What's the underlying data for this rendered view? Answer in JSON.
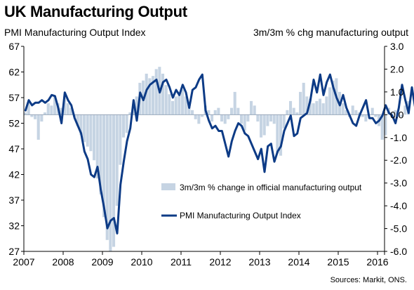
{
  "title": "UK Manufacturing Output",
  "left_axis_label": "PMI Manufacturing Output Index",
  "right_axis_label": "3m/3m % chg manufacturing output",
  "source": "Sources: Markit, ONS.",
  "chart_data": {
    "type": "bar+line",
    "title": "UK Manufacturing Output",
    "x_ticks": [
      "2007",
      "2008",
      "2009",
      "2010",
      "2011",
      "2012",
      "2013",
      "2014",
      "2015",
      "2016"
    ],
    "left_axis": {
      "label": "PMI Manufacturing Output Index",
      "min": 27,
      "max": 67,
      "ticks": [
        "67",
        "62",
        "57",
        "52",
        "47",
        "42",
        "37",
        "32",
        "27"
      ]
    },
    "right_axis": {
      "label": "3m/3m % chg manufacturing output",
      "min": -6.0,
      "max": 3.0,
      "ticks": [
        "3.0",
        "2.0",
        "1.0",
        "0.0",
        "-1.0",
        "-2.0",
        "-3.0",
        "-4.0",
        "-5.0",
        "-6.0"
      ]
    },
    "legend": [
      {
        "label": "3m/3m % change in official manufacturing output",
        "type": "bar",
        "color": "#c6d4e3"
      },
      {
        "label": "PMI Manufacturing Output Index",
        "type": "line",
        "color": "#0d3b86"
      }
    ],
    "legend_position": "bottom-center",
    "grid": false,
    "start_year": 2007,
    "months_per_year": 12,
    "series": [
      {
        "name": "3m/3m % change in official manufacturing output",
        "axis": "right",
        "type": "bar",
        "values": [
          0.1,
          0.5,
          -0.1,
          -0.2,
          -1.1,
          -0.3,
          0.1,
          0.5,
          0.4,
          0.8,
          0.5,
          0.3,
          0.8,
          0.5,
          0.3,
          -0.1,
          -0.5,
          -0.9,
          -1.2,
          -1.4,
          -1.6,
          -2.0,
          -2.8,
          -3.5,
          -4.5,
          -5.5,
          -6.0,
          -5.8,
          -4.0,
          -2.2,
          -1.0,
          -0.8,
          0.1,
          0.4,
          0.8,
          1.4,
          1.5,
          1.8,
          1.6,
          1.7,
          2.0,
          2.1,
          1.8,
          1.3,
          0.9,
          0.6,
          0.8,
          1.0,
          1.1,
          0.8,
          0.5,
          0.2,
          -0.2,
          -0.4,
          -0.1,
          0.4,
          0.2,
          -0.3,
          0.2,
          0.3,
          -0.3,
          -0.4,
          -0.2,
          0.3,
          1.0,
          0.3,
          -0.4,
          -0.7,
          -0.3,
          0.6,
          0.4,
          -0.3,
          -1.0,
          -0.9,
          -0.5,
          -0.3,
          -0.4,
          -1.7,
          -1.8,
          -0.6,
          0.2,
          0.6,
          0.3,
          0.1,
          1.0,
          1.4,
          0.8,
          0.7,
          0.5,
          0.6,
          0.7,
          0.5,
          0.8,
          1.2,
          1.5,
          1.6,
          1.0,
          0.5,
          0.2,
          -0.1,
          0.4,
          0.2,
          0.1,
          -0.1,
          -0.3,
          0.0,
          0.3,
          -0.1,
          -0.5,
          -1.1,
          -0.9,
          0.3,
          0.1,
          0.2,
          -0.1,
          -0.1,
          0.4,
          0.6
        ]
      },
      {
        "name": "PMI Manufacturing Output Index",
        "axis": "left",
        "type": "line",
        "values": [
          54.5,
          56.5,
          55.5,
          56.0,
          56.0,
          56.5,
          56.0,
          56.5,
          57.5,
          57.3,
          55.0,
          52.0,
          58.0,
          56.5,
          55.5,
          53.0,
          51.5,
          50.0,
          46.5,
          45.0,
          42.0,
          41.5,
          43.5,
          39.0,
          35.5,
          31.5,
          33.0,
          33.5,
          30.5,
          40.0,
          44.5,
          48.5,
          51.0,
          56.5,
          52.5,
          58.0,
          56.5,
          58.5,
          59.5,
          60.0,
          60.5,
          58.0,
          60.0,
          60.5,
          59.0,
          57.0,
          58.5,
          57.5,
          59.5,
          58.0,
          55.0,
          58.5,
          59.0,
          60.5,
          61.5,
          54.5,
          52.5,
          51.0,
          51.5,
          50.5,
          50.5,
          48.0,
          45.5,
          48.5,
          50.5,
          52.0,
          51.5,
          50.0,
          49.5,
          48.0,
          46.5,
          45.0,
          47.0,
          42.5,
          47.5,
          48.0,
          44.5,
          46.5,
          47.5,
          50.5,
          52.0,
          53.5,
          49.5,
          50.0,
          53.0,
          53.5,
          54.0,
          56.5,
          60.5,
          58.0,
          61.5,
          57.5,
          60.0,
          61.5,
          59.0,
          57.0,
          55.5,
          57.5,
          55.0,
          53.5,
          52.0,
          51.5,
          53.5,
          55.0,
          56.5,
          53.0,
          53.0,
          52.0,
          52.5,
          53.5,
          55.5,
          54.0,
          53.5,
          52.0,
          55.0,
          59.5,
          56.5,
          54.0,
          59.0,
          55.0,
          52.5
        ]
      }
    ]
  }
}
